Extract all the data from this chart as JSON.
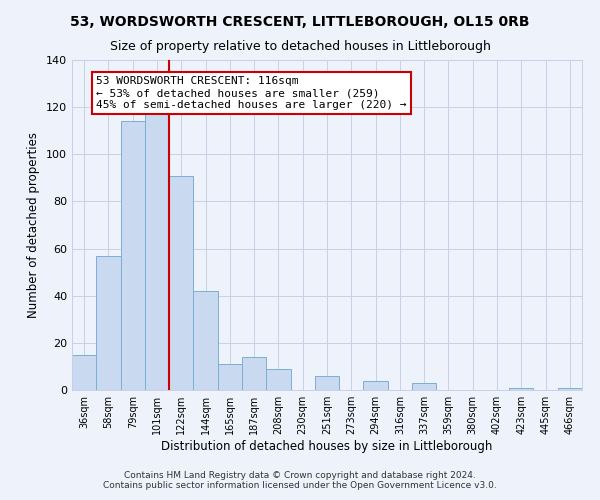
{
  "title": "53, WORDSWORTH CRESCENT, LITTLEBOROUGH, OL15 0RB",
  "subtitle": "Size of property relative to detached houses in Littleborough",
  "xlabel": "Distribution of detached houses by size in Littleborough",
  "ylabel": "Number of detached properties",
  "categories": [
    "36sqm",
    "58sqm",
    "79sqm",
    "101sqm",
    "122sqm",
    "144sqm",
    "165sqm",
    "187sqm",
    "208sqm",
    "230sqm",
    "251sqm",
    "273sqm",
    "294sqm",
    "316sqm",
    "337sqm",
    "359sqm",
    "380sqm",
    "402sqm",
    "423sqm",
    "445sqm",
    "466sqm"
  ],
  "values": [
    15,
    57,
    114,
    118,
    91,
    42,
    11,
    14,
    9,
    0,
    6,
    0,
    4,
    0,
    3,
    0,
    0,
    0,
    1,
    0,
    1
  ],
  "bar_color": "#c9d9f0",
  "bar_edge_color": "#7bafd4",
  "vline_x_index": 4,
  "vline_color": "#cc0000",
  "annotation_title": "53 WORDSWORTH CRESCENT: 116sqm",
  "annotation_line1": "← 53% of detached houses are smaller (259)",
  "annotation_line2": "45% of semi-detached houses are larger (220) →",
  "annotation_box_edge": "#cc0000",
  "ylim": [
    0,
    140
  ],
  "yticks": [
    0,
    20,
    40,
    60,
    80,
    100,
    120,
    140
  ],
  "footer1": "Contains HM Land Registry data © Crown copyright and database right 2024.",
  "footer2": "Contains public sector information licensed under the Open Government Licence v3.0.",
  "background_color": "#eef2fa",
  "grid_color": "#c8d0e8",
  "title_fontsize": 10,
  "subtitle_fontsize": 9
}
